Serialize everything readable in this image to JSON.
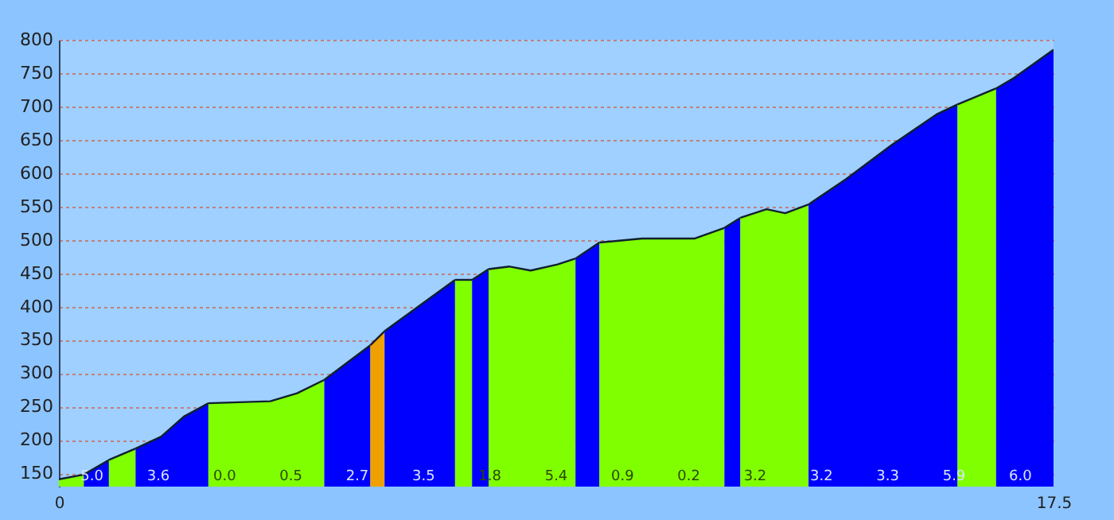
{
  "chart_data": {
    "type": "area",
    "xlim": [
      0,
      17.5
    ],
    "xticks": [
      0,
      17.5
    ],
    "ylim": [
      130,
      800
    ],
    "yticks": [
      150,
      200,
      250,
      300,
      350,
      400,
      450,
      500,
      550,
      600,
      650,
      700,
      750,
      800
    ],
    "grid": "y",
    "series": [
      {
        "color": "#80ff00",
        "x": [
          0,
          0.44
        ],
        "values": [
          141,
          148
        ]
      },
      {
        "color": "#0000ff",
        "x": [
          0.44,
          0.88
        ],
        "values": [
          148,
          170
        ]
      },
      {
        "color": "#80ff00",
        "x": [
          0.88,
          1.35
        ],
        "values": [
          170,
          187
        ]
      },
      {
        "color": "#0000ff",
        "x": [
          1.35,
          1.8,
          2.2,
          2.63
        ],
        "values": [
          187,
          205,
          235,
          255
        ]
      },
      {
        "color": "#80ff00",
        "x": [
          2.63,
          3.72,
          4.19,
          4.67
        ],
        "values": [
          255,
          258,
          270,
          290
        ]
      },
      {
        "color": "#0000ff",
        "x": [
          4.67,
          5.48
        ],
        "values": [
          290,
          342
        ]
      },
      {
        "color": "#f0a000",
        "x": [
          5.48,
          5.73
        ],
        "values": [
          342,
          363
        ]
      },
      {
        "color": "#0000ff",
        "x": [
          5.73,
          6.34,
          6.97
        ],
        "values": [
          363,
          401,
          440
        ]
      },
      {
        "color": "#80ff00",
        "x": [
          6.97,
          7.27
        ],
        "values": [
          440,
          440
        ]
      },
      {
        "color": "#0000ff",
        "x": [
          7.27,
          7.56
        ],
        "values": [
          440,
          456
        ]
      },
      {
        "color": "#80ff00",
        "x": [
          7.56,
          7.92,
          8.3,
          8.77,
          9.09
        ],
        "values": [
          456,
          460,
          454,
          463,
          472
        ]
      },
      {
        "color": "#0000ff",
        "x": [
          9.09,
          9.51
        ],
        "values": [
          472,
          496
        ]
      },
      {
        "color": "#80ff00",
        "x": [
          9.51,
          10.26,
          11.19,
          11.71
        ],
        "values": [
          496,
          502,
          502,
          518
        ]
      },
      {
        "color": "#0000ff",
        "x": [
          11.71,
          11.99
        ],
        "values": [
          518,
          533
        ]
      },
      {
        "color": "#80ff00",
        "x": [
          11.99,
          12.45,
          12.78,
          13.19
        ],
        "values": [
          533,
          546,
          540,
          553
        ]
      },
      {
        "color": "#0000ff",
        "x": [
          13.19,
          13.85,
          14.65,
          15.44,
          15.81
        ],
        "values": [
          553,
          591,
          642,
          688,
          703
        ]
      },
      {
        "color": "#80ff00",
        "x": [
          15.81,
          16.49
        ],
        "values": [
          703,
          727
        ]
      },
      {
        "color": "#0000ff",
        "x": [
          16.49,
          16.79,
          17.5
        ],
        "values": [
          727,
          742,
          785
        ]
      }
    ],
    "annotations": [
      "5.0",
      "3.6",
      "0.0",
      "0.5",
      "2.7",
      "3.5",
      "1.8",
      "5.4",
      "0.9",
      "0.2",
      "3.2",
      "3.2",
      "3.3",
      "5.9",
      "6.0"
    ]
  }
}
